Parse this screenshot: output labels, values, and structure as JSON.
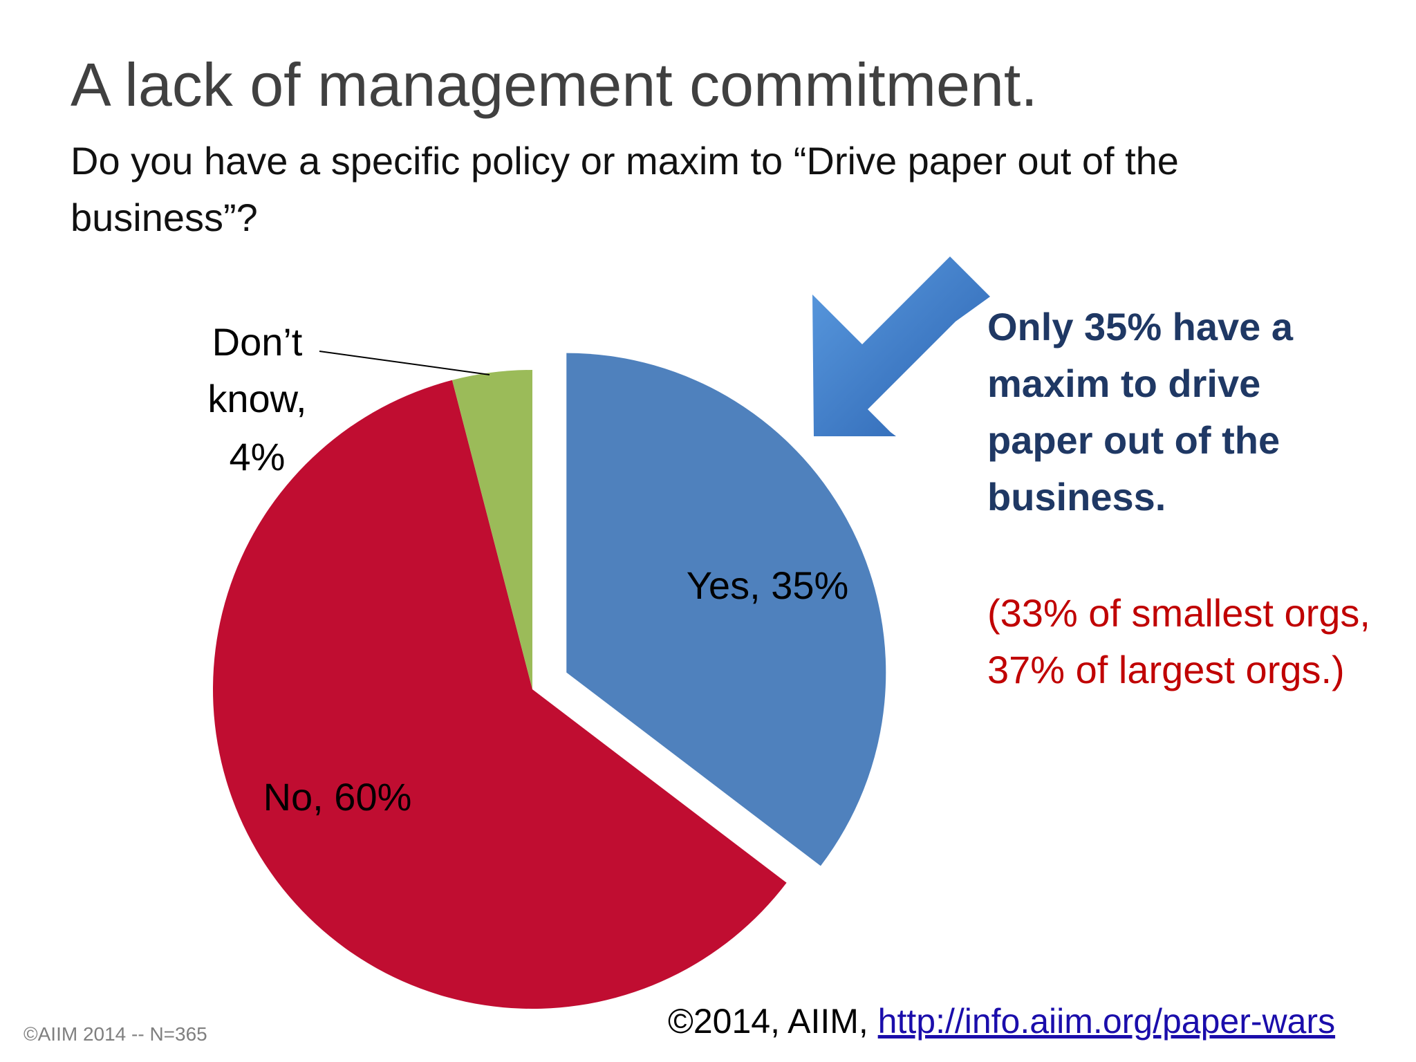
{
  "slide": {
    "title": "A lack of management commitment.",
    "subtitle": "Do you have a specific policy or maxim to “Drive paper out of the business”?"
  },
  "callout": {
    "main": "Only 35% have a maxim to drive paper out of the business.",
    "sub": "(33% of smallest orgs, 37% of largest orgs.)",
    "arrow_icon": "arrow-down-left-icon"
  },
  "footer": {
    "copyright_left": "©AIIM 2014 -- N=365",
    "copyright_right_prefix": "©2014, AIIM, ",
    "link_text": "http://info.aiim.org/paper-wars"
  },
  "chart_data": {
    "type": "pie",
    "title": "",
    "slices": [
      {
        "label": "Yes, 35%",
        "category": "Yes",
        "value": 35,
        "color": "#4f81bd",
        "exploded": true
      },
      {
        "label": "No, 60%",
        "category": "No",
        "value": 60,
        "color": "#c00d31",
        "exploded": false
      },
      {
        "label": "Don’t know, 4%",
        "category": "Don’t know",
        "value": 4,
        "color": "#9bbb59",
        "exploded": false
      }
    ],
    "legend": "none",
    "data_labels": "category and percent"
  },
  "colors": {
    "title": "#404040",
    "callout_main": "#1f3864",
    "callout_sub": "#c00000",
    "arrow": "#3a78c8",
    "link": "#1a0dab"
  }
}
